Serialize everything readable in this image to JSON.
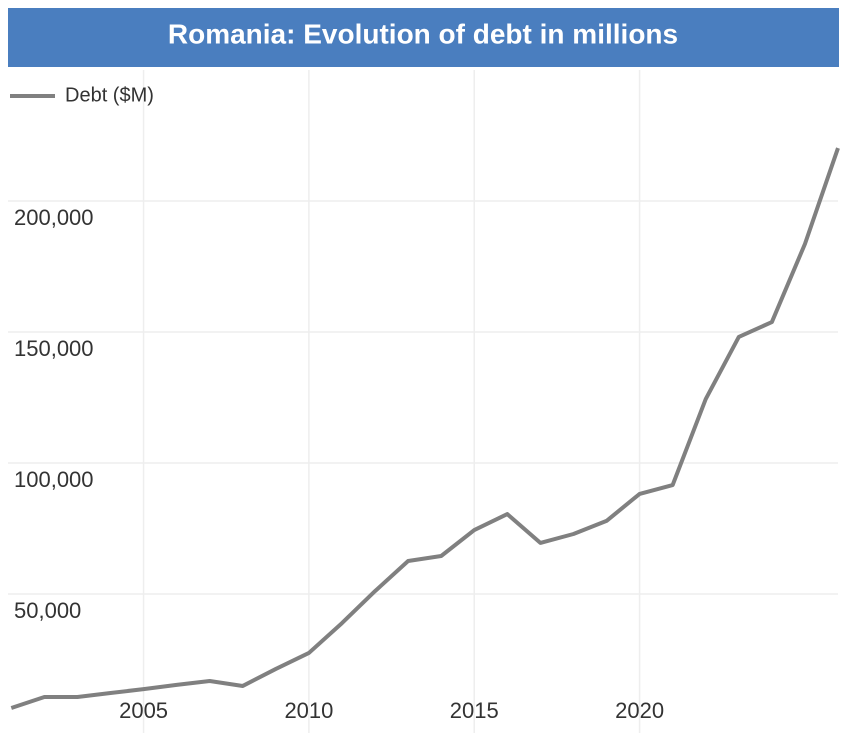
{
  "chart_data": {
    "type": "line",
    "title": "Romania: Evolution of debt in millions",
    "x": [
      2001,
      2002,
      2003,
      2004,
      2005,
      2006,
      2007,
      2008,
      2009,
      2010,
      2011,
      2012,
      2013,
      2014,
      2015,
      2016,
      2017,
      2018,
      2019,
      2020,
      2021,
      2022,
      2023,
      2024,
      2025,
      2026
    ],
    "series": [
      {
        "name": "Debt ($M)",
        "color": "#808080",
        "values": [
          6500,
          10700,
          10700,
          12200,
          13700,
          15300,
          16800,
          14900,
          21400,
          27500,
          38900,
          51100,
          62600,
          64500,
          74400,
          80500,
          69500,
          72900,
          77900,
          88200,
          91600,
          124400,
          148100,
          153800,
          183600,
          220200
        ]
      }
    ],
    "xlim": [
      2000.9,
      2026
    ],
    "xticks": [
      2005,
      2010,
      2015,
      2020
    ],
    "ylim": [
      0,
      250000
    ],
    "yticks": [
      {
        "value": 50000,
        "label": "50,000"
      },
      {
        "value": 100000,
        "label": "100,000"
      },
      {
        "value": 150000,
        "label": "150,000"
      },
      {
        "value": 200000,
        "label": "200,000"
      }
    ],
    "grid": true,
    "legend": "top-left"
  }
}
